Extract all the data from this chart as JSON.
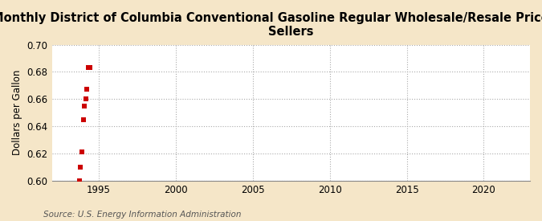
{
  "title": "Monthly District of Columbia Conventional Gasoline Regular Wholesale/Resale Price by All\nSellers",
  "ylabel": "Dollars per Gallon",
  "source": "Source: U.S. Energy Information Administration",
  "background_color": "#f5e6c8",
  "plot_background_color": "#ffffff",
  "data_x": [
    1993.75,
    1993.833,
    1993.917,
    1994.0,
    1994.083,
    1994.167,
    1994.25,
    1994.333,
    1994.417
  ],
  "data_y": [
    0.6,
    0.61,
    0.621,
    0.645,
    0.655,
    0.66,
    0.667,
    0.683,
    0.683
  ],
  "marker_color": "#cc0000",
  "marker_size": 5,
  "xlim": [
    1992,
    2023
  ],
  "ylim": [
    0.6,
    0.7
  ],
  "xticks": [
    1995,
    2000,
    2005,
    2010,
    2015,
    2020
  ],
  "yticks": [
    0.6,
    0.62,
    0.64,
    0.66,
    0.68,
    0.7
  ],
  "grid_color": "#aaaaaa",
  "title_fontsize": 10.5,
  "label_fontsize": 8.5,
  "tick_fontsize": 8.5,
  "source_fontsize": 7.5
}
